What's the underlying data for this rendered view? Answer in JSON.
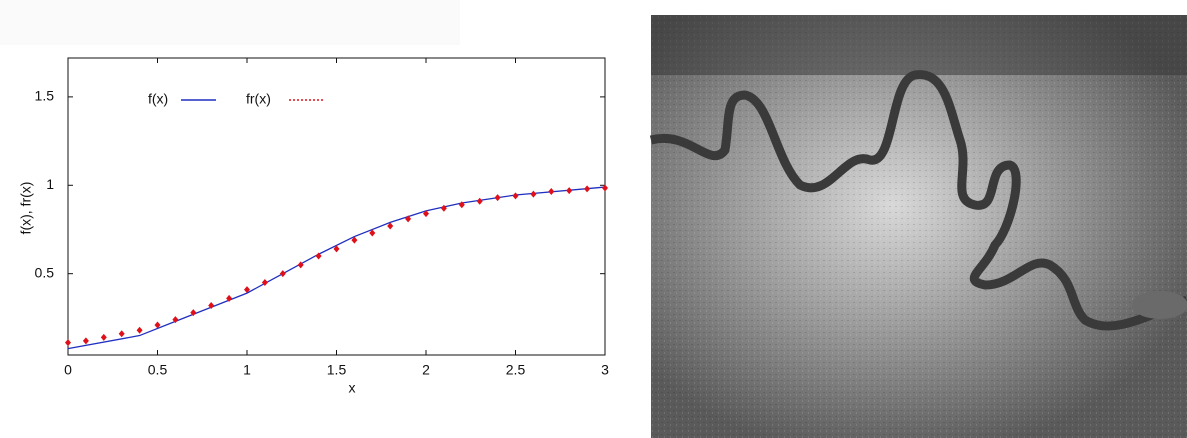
{
  "chart_data": {
    "type": "line",
    "xlabel": "x",
    "ylabel": "f(x), fr(x)",
    "xlim": [
      0,
      3
    ],
    "ylim": [
      0.04,
      1.72
    ],
    "xticks": [
      0,
      0.5,
      1,
      1.5,
      2,
      2.5,
      3
    ],
    "yticks": [
      0.5,
      1,
      1.5
    ],
    "legend": "upper left",
    "series": [
      {
        "name": "f(x)",
        "color": "#1f2fbf",
        "style": "solid",
        "x": [
          0,
          0.4,
          0.6,
          0.8,
          1.0,
          1.2,
          1.4,
          1.6,
          1.8,
          2.0,
          2.2,
          2.5,
          3
        ],
        "values": [
          0.076,
          0.15,
          0.23,
          0.31,
          0.39,
          0.5,
          0.61,
          0.71,
          0.79,
          0.855,
          0.9,
          0.945,
          0.99
        ]
      },
      {
        "name": "fr(x)",
        "color": "#e0101a",
        "style": "dotted",
        "marker": "diamond",
        "x": [
          0,
          0.1,
          0.2,
          0.3,
          0.4,
          0.5,
          0.6,
          0.7,
          0.8,
          0.9,
          1.0,
          1.1,
          1.2,
          1.3,
          1.4,
          1.5,
          1.6,
          1.7,
          1.8,
          1.9,
          2.0,
          2.1,
          2.2,
          2.3,
          2.4,
          2.5,
          2.6,
          2.7,
          2.8,
          2.9,
          3.0
        ],
        "values": [
          0.11,
          0.12,
          0.14,
          0.16,
          0.18,
          0.21,
          0.24,
          0.28,
          0.32,
          0.36,
          0.41,
          0.45,
          0.5,
          0.55,
          0.6,
          0.64,
          0.69,
          0.73,
          0.77,
          0.81,
          0.84,
          0.87,
          0.89,
          0.91,
          0.93,
          0.94,
          0.95,
          0.965,
          0.97,
          0.98,
          0.985
        ]
      }
    ]
  }
}
